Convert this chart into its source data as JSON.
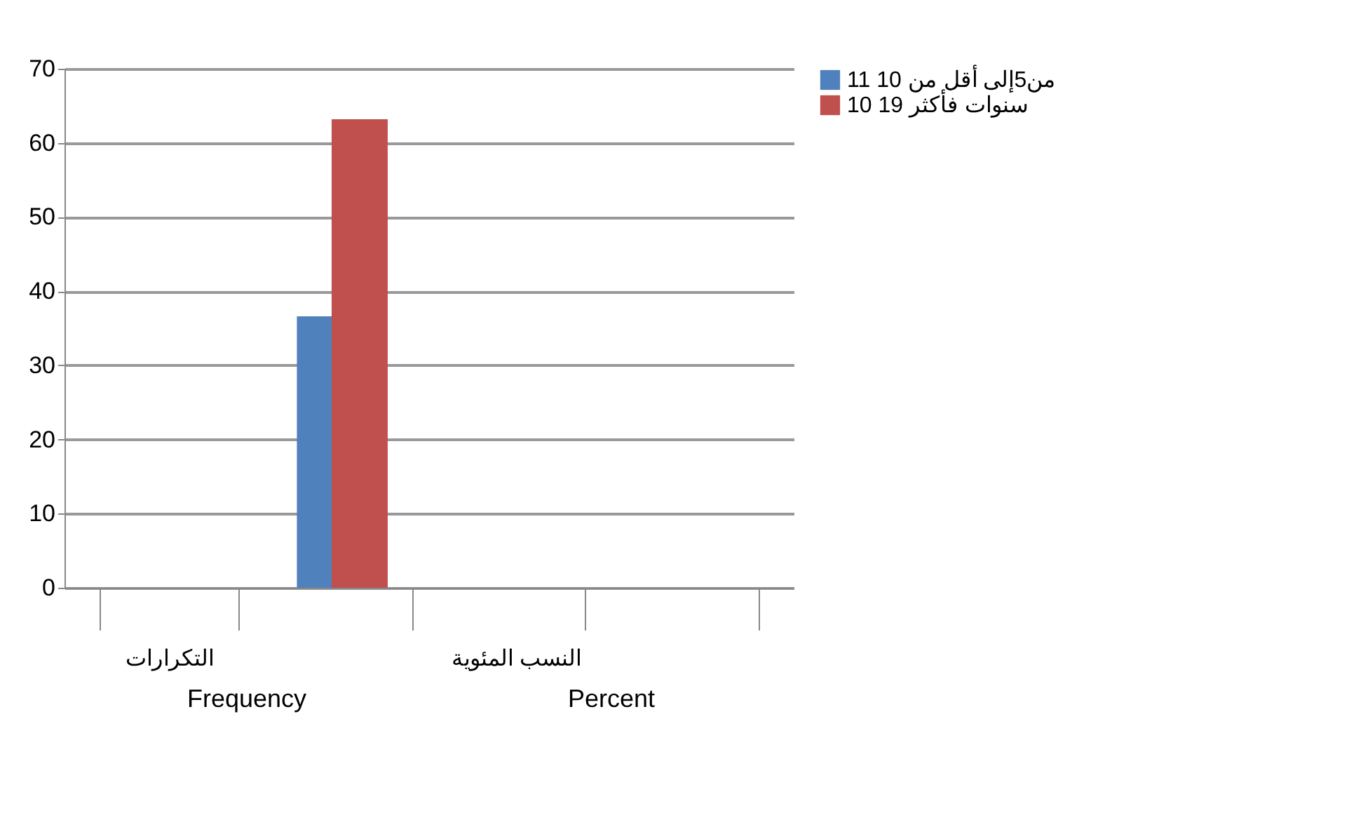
{
  "chart_data": {
    "type": "bar",
    "categories": [
      "التكرارات",
      null,
      "النسب المئوية",
      null
    ],
    "series": [
      {
        "name": "من5إلى أقل من 10 11",
        "color": "#4f81bd",
        "values": [
          null,
          36.6,
          null,
          null
        ]
      },
      {
        "name": "10 سنوات فأكثر 19",
        "color": "#c0504d",
        "values": [
          null,
          63.2,
          null,
          null
        ]
      }
    ],
    "annotations": [
      "Frequency",
      "Percent"
    ],
    "ylim": [
      0,
      70
    ],
    "yticks": [
      0,
      10,
      20,
      30,
      40,
      50,
      60,
      70
    ],
    "grid": "y",
    "legend": "right"
  }
}
